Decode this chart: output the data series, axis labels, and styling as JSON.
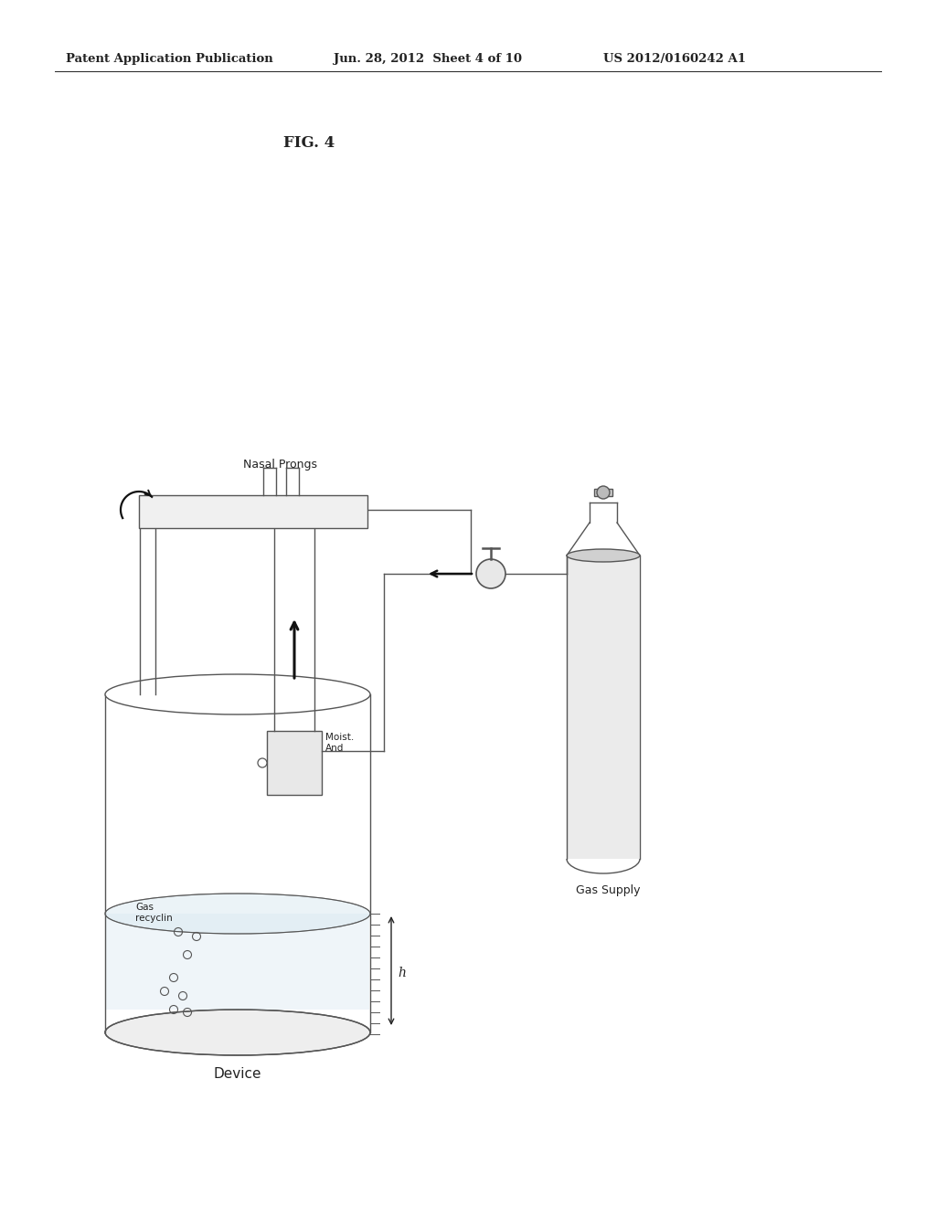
{
  "title_text": "FIG. 4",
  "header_left": "Patent Application Publication",
  "header_center": "Jun. 28, 2012  Sheet 4 of 10",
  "header_right": "US 2012/0160242 A1",
  "label_nasal_prongs": "Nasal Prongs",
  "label_device": "Device",
  "label_gas_supply": "Gas Supply",
  "label_moist_and": "Moist.\nAnd",
  "label_gas_recyclin": "Gas\nrecyclin",
  "label_h": "h",
  "bg_color": "#ffffff",
  "line_color": "#555555",
  "dark_color": "#222222"
}
